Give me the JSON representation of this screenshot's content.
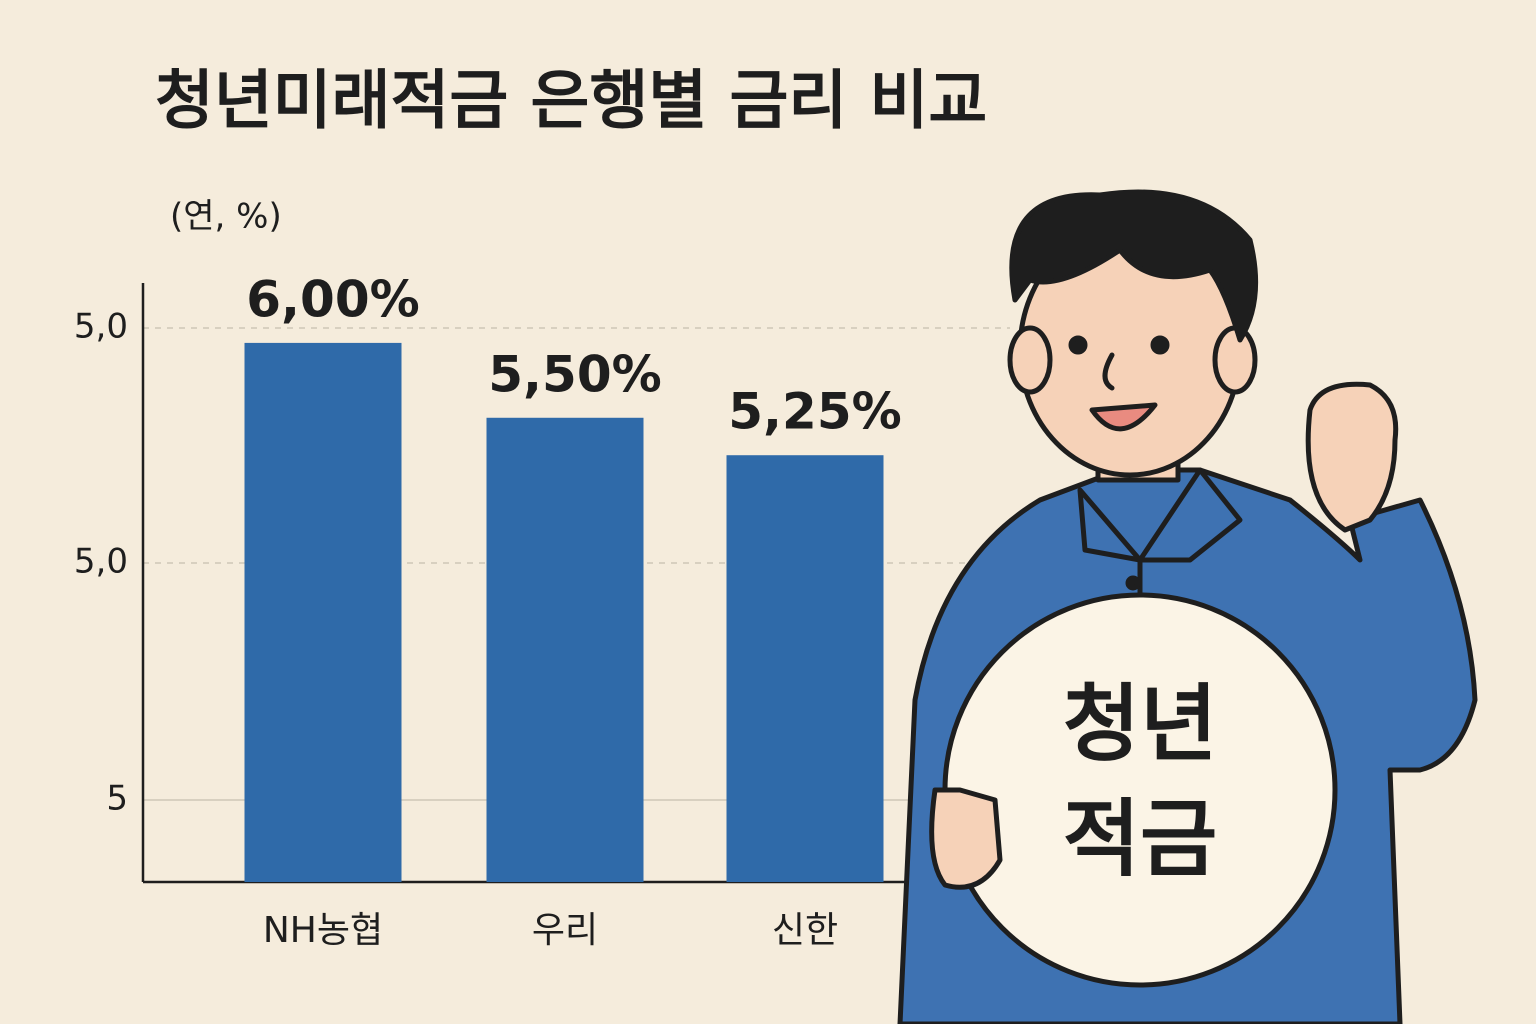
{
  "chart_data": {
    "type": "bar",
    "title": "청년미래적금 은행별 금리 비교",
    "unit_label": "(연, %)",
    "categories": [
      "NH농협",
      "우리",
      "신한"
    ],
    "values": [
      6.0,
      5.5,
      5.25
    ],
    "value_labels": [
      "6,00%",
      "5,50%",
      "5,25%"
    ],
    "color": "#2f6aa9",
    "ylim": [
      2.4,
      6.4
    ],
    "y_axis_labels": [
      "5,0",
      "5,0",
      "5"
    ],
    "grid": true
  },
  "illustration": {
    "sign_text": [
      "청년",
      "적금"
    ]
  }
}
